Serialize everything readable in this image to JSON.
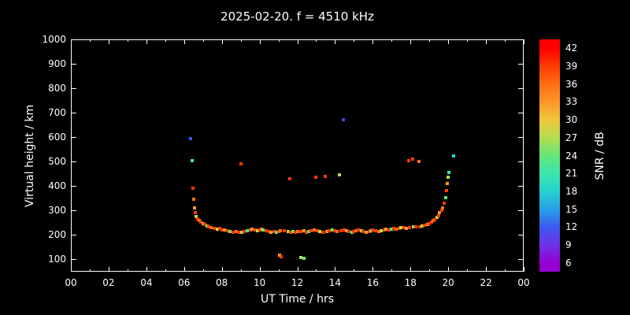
{
  "chart_data": {
    "type": "scatter",
    "title": "2025-02-20. f = 4510 kHz",
    "xlabel": "UT Time / hrs",
    "ylabel": "Virtual height / km",
    "xlim": [
      0,
      24
    ],
    "ylim": [
      50,
      1000
    ],
    "x_ticks": [
      0,
      2,
      4,
      6,
      8,
      10,
      12,
      14,
      16,
      18,
      20,
      22,
      24
    ],
    "x_tick_labels": [
      "00",
      "02",
      "04",
      "06",
      "08",
      "10",
      "12",
      "14",
      "16",
      "18",
      "20",
      "22",
      "00"
    ],
    "x_minor_ticks": [
      1,
      3,
      5,
      7,
      9,
      11,
      13,
      15,
      17,
      19,
      21,
      23
    ],
    "y_ticks": [
      100,
      200,
      300,
      400,
      500,
      600,
      700,
      800,
      900,
      1000
    ],
    "grid": false,
    "background": "#000000",
    "foreground": "#ffffff",
    "colorbar": {
      "label": "SNR / dB",
      "ticks": [
        42,
        39,
        36,
        33,
        30,
        27,
        24,
        21,
        18,
        15,
        12,
        9,
        6
      ],
      "range": [
        4.5,
        43.5
      ],
      "stops": [
        {
          "v": 42,
          "c": [
            255,
            0,
            0
          ]
        },
        {
          "v": 39,
          "c": [
            255,
            60,
            0
          ]
        },
        {
          "v": 36,
          "c": [
            255,
            110,
            20
          ]
        },
        {
          "v": 33,
          "c": [
            255,
            150,
            40
          ]
        },
        {
          "v": 30,
          "c": [
            240,
            200,
            60
          ]
        },
        {
          "v": 27,
          "c": [
            180,
            220,
            80
          ]
        },
        {
          "v": 24,
          "c": [
            100,
            230,
            120
          ]
        },
        {
          "v": 21,
          "c": [
            60,
            230,
            170
          ]
        },
        {
          "v": 18,
          "c": [
            40,
            210,
            210
          ]
        },
        {
          "v": 15,
          "c": [
            40,
            160,
            230
          ]
        },
        {
          "v": 12,
          "c": [
            60,
            90,
            240
          ]
        },
        {
          "v": 9,
          "c": [
            110,
            50,
            230
          ]
        },
        {
          "v": 6,
          "c": [
            150,
            0,
            210
          ]
        }
      ]
    },
    "points": [
      [
        6.35,
        595,
        12
      ],
      [
        6.42,
        505,
        21
      ],
      [
        6.45,
        390,
        39
      ],
      [
        6.5,
        345,
        36
      ],
      [
        6.55,
        312,
        33
      ],
      [
        6.6,
        292,
        39
      ],
      [
        6.65,
        276,
        27
      ],
      [
        6.72,
        266,
        39
      ],
      [
        6.8,
        258,
        36
      ],
      [
        6.9,
        252,
        39
      ],
      [
        7.0,
        248,
        33
      ],
      [
        7.1,
        243,
        39
      ],
      [
        7.2,
        238,
        24
      ],
      [
        7.3,
        232,
        39
      ],
      [
        7.45,
        230,
        36
      ],
      [
        7.6,
        228,
        39
      ],
      [
        7.75,
        225,
        27
      ],
      [
        7.9,
        227,
        39
      ],
      [
        8.0,
        222,
        39
      ],
      [
        8.15,
        220,
        33
      ],
      [
        8.3,
        218,
        39
      ],
      [
        8.45,
        215,
        24
      ],
      [
        8.6,
        212,
        39
      ],
      [
        8.75,
        214,
        36
      ],
      [
        8.9,
        210,
        39
      ],
      [
        9.0,
        490,
        39
      ],
      [
        9.05,
        212,
        27
      ],
      [
        9.2,
        215,
        39
      ],
      [
        9.35,
        217,
        21
      ],
      [
        9.5,
        222,
        39
      ],
      [
        9.6,
        225,
        33
      ],
      [
        9.75,
        220,
        39
      ],
      [
        9.9,
        218,
        27
      ],
      [
        10.0,
        222,
        39
      ],
      [
        10.1,
        224,
        36
      ],
      [
        10.2,
        220,
        24
      ],
      [
        10.35,
        218,
        39
      ],
      [
        10.5,
        215,
        39
      ],
      [
        10.6,
        212,
        33
      ],
      [
        10.75,
        214,
        39
      ],
      [
        10.9,
        210,
        21
      ],
      [
        11.0,
        213,
        39
      ],
      [
        11.1,
        216,
        36
      ],
      [
        11.3,
        218,
        39
      ],
      [
        11.05,
        118,
        33
      ],
      [
        11.15,
        112,
        39
      ],
      [
        11.6,
        430,
        39
      ],
      [
        11.5,
        215,
        27
      ],
      [
        11.65,
        212,
        39
      ],
      [
        11.75,
        214,
        24
      ],
      [
        11.9,
        210,
        39
      ],
      [
        12.0,
        213,
        36
      ],
      [
        12.2,
        215,
        39
      ],
      [
        12.35,
        217,
        33
      ],
      [
        12.5,
        212,
        39
      ],
      [
        12.6,
        214,
        21
      ],
      [
        12.75,
        217,
        39
      ],
      [
        12.9,
        221,
        36
      ],
      [
        12.2,
        108,
        27
      ],
      [
        12.35,
        104,
        24
      ],
      [
        13.0,
        435,
        39
      ],
      [
        13.05,
        218,
        39
      ],
      [
        13.2,
        215,
        27
      ],
      [
        13.35,
        212,
        39
      ],
      [
        13.5,
        440,
        39
      ],
      [
        13.55,
        215,
        33
      ],
      [
        13.7,
        217,
        39
      ],
      [
        13.85,
        221,
        24
      ],
      [
        14.0,
        218,
        39
      ],
      [
        14.1,
        215,
        36
      ],
      [
        14.25,
        445,
        27
      ],
      [
        14.3,
        217,
        39
      ],
      [
        14.45,
        670,
        9
      ],
      [
        14.5,
        221,
        39
      ],
      [
        14.6,
        218,
        33
      ],
      [
        14.75,
        215,
        39
      ],
      [
        14.9,
        212,
        21
      ],
      [
        15.0,
        214,
        39
      ],
      [
        15.1,
        217,
        36
      ],
      [
        15.25,
        221,
        39
      ],
      [
        15.4,
        218,
        27
      ],
      [
        15.5,
        215,
        39
      ],
      [
        15.65,
        212,
        33
      ],
      [
        15.8,
        214,
        39
      ],
      [
        15.9,
        217,
        24
      ],
      [
        16.0,
        221,
        39
      ],
      [
        16.15,
        218,
        39
      ],
      [
        16.3,
        215,
        36
      ],
      [
        16.45,
        217,
        27
      ],
      [
        16.6,
        221,
        39
      ],
      [
        16.7,
        224,
        33
      ],
      [
        16.85,
        222,
        39
      ],
      [
        17.0,
        225,
        21
      ],
      [
        17.1,
        227,
        39
      ],
      [
        17.25,
        225,
        36
      ],
      [
        17.4,
        228,
        39
      ],
      [
        17.5,
        231,
        27
      ],
      [
        17.65,
        230,
        39
      ],
      [
        17.8,
        228,
        33
      ],
      [
        17.9,
        505,
        39
      ],
      [
        18.1,
        510,
        39
      ],
      [
        17.95,
        231,
        39
      ],
      [
        18.15,
        234,
        24
      ],
      [
        18.3,
        232,
        39
      ],
      [
        18.45,
        500,
        36
      ],
      [
        18.5,
        235,
        39
      ],
      [
        18.6,
        238,
        27
      ],
      [
        18.75,
        240,
        39
      ],
      [
        18.9,
        244,
        33
      ],
      [
        19.0,
        248,
        39
      ],
      [
        19.1,
        252,
        39
      ],
      [
        19.2,
        258,
        36
      ],
      [
        19.3,
        264,
        39
      ],
      [
        19.4,
        272,
        27
      ],
      [
        19.5,
        280,
        39
      ],
      [
        19.55,
        290,
        33
      ],
      [
        19.65,
        300,
        39
      ],
      [
        19.72,
        312,
        36
      ],
      [
        19.8,
        330,
        39
      ],
      [
        19.85,
        352,
        24
      ],
      [
        19.9,
        382,
        39
      ],
      [
        19.95,
        412,
        33
      ],
      [
        20.0,
        438,
        27
      ],
      [
        20.05,
        455,
        21
      ],
      [
        20.3,
        525,
        18
      ]
    ]
  }
}
